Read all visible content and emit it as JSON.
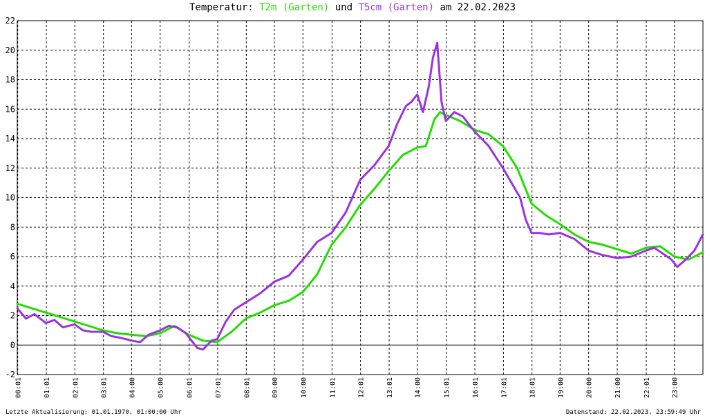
{
  "title": {
    "prefix": "Temperatur: ",
    "series1": "T2m (Garten)",
    "mid": " und ",
    "series2": "T5cm (Garten)",
    "suffix": " am 22.02.2023"
  },
  "footer": {
    "left": "Letzte Aktualisierung: 01.01.1970, 01:00:00 Uhr",
    "right": "Datenstand: 22.02.2023, 23:59:49 Uhr"
  },
  "colors": {
    "t2m": "#22dd00",
    "t5cm": "#9933dd",
    "grid": "#000000",
    "zero_line": "#000000"
  },
  "chart_data": {
    "type": "line",
    "title": "Temperatur: T2m (Garten) und T5cm (Garten) am 22.02.2023",
    "xlim": [
      0,
      24
    ],
    "ylim": [
      -2,
      22
    ],
    "yticks": [
      -2,
      0,
      2,
      4,
      6,
      8,
      10,
      12,
      14,
      16,
      18,
      20,
      22
    ],
    "xticks": [
      {
        "h": 0.0167,
        "label": "00:01"
      },
      {
        "h": 1.0167,
        "label": "01:01"
      },
      {
        "h": 2.0167,
        "label": "02:01"
      },
      {
        "h": 3.0167,
        "label": "03:01"
      },
      {
        "h": 4.0,
        "label": "04:00"
      },
      {
        "h": 5.0,
        "label": "05:00"
      },
      {
        "h": 6.0167,
        "label": "06:01"
      },
      {
        "h": 7.0167,
        "label": "07:01"
      },
      {
        "h": 8.0167,
        "label": "08:01"
      },
      {
        "h": 9.0,
        "label": "09:00"
      },
      {
        "h": 10.0,
        "label": "10:00"
      },
      {
        "h": 11.0167,
        "label": "11:01"
      },
      {
        "h": 12.0167,
        "label": "12:01"
      },
      {
        "h": 13.0167,
        "label": "13:01"
      },
      {
        "h": 14.0,
        "label": "14:00"
      },
      {
        "h": 15.0167,
        "label": "15:01"
      },
      {
        "h": 16.0167,
        "label": "16:01"
      },
      {
        "h": 17.0167,
        "label": "17:01"
      },
      {
        "h": 18.0167,
        "label": "18:01"
      },
      {
        "h": 19.0,
        "label": "19:00"
      },
      {
        "h": 20.0,
        "label": "20:00"
      },
      {
        "h": 21.0,
        "label": "21:00"
      },
      {
        "h": 22.0167,
        "label": "22:01"
      },
      {
        "h": 23.0,
        "label": "23:00"
      }
    ],
    "grid": true,
    "series": [
      {
        "name": "T2m (Garten)",
        "x": [
          0,
          0.5,
          1,
          1.5,
          2,
          2.5,
          3,
          3.5,
          4,
          4.5,
          5,
          5.5,
          6,
          6.5,
          7,
          7.5,
          8,
          8.5,
          9,
          9.5,
          10,
          10.5,
          11,
          11.5,
          12,
          12.5,
          13,
          13.5,
          14,
          14.3,
          14.6,
          14.8,
          15,
          15.5,
          16,
          16.5,
          17,
          17.5,
          18,
          18.5,
          19,
          19.5,
          20,
          20.5,
          21,
          21.5,
          22,
          22.5,
          23,
          23.5,
          24
        ],
        "y": [
          2.8,
          2.5,
          2.2,
          1.9,
          1.6,
          1.3,
          1.0,
          0.8,
          0.7,
          0.6,
          0.8,
          1.3,
          0.7,
          0.3,
          0.2,
          0.9,
          1.8,
          2.2,
          2.7,
          3.0,
          3.6,
          4.8,
          6.8,
          8.0,
          9.5,
          10.6,
          11.8,
          12.9,
          13.4,
          13.5,
          15.3,
          15.8,
          15.6,
          15.2,
          14.6,
          14.3,
          13.5,
          12.0,
          9.6,
          8.8,
          8.2,
          7.5,
          7.0,
          6.8,
          6.5,
          6.2,
          6.6,
          6.7,
          6.0,
          5.8,
          6.3
        ]
      },
      {
        "name": "T5cm (Garten)",
        "x": [
          0,
          0.3,
          0.6,
          1,
          1.3,
          1.6,
          2,
          2.3,
          2.6,
          3,
          3.3,
          3.6,
          4,
          4.3,
          4.6,
          5,
          5.3,
          5.6,
          5.9,
          6.1,
          6.3,
          6.5,
          6.8,
          7,
          7.3,
          7.6,
          8,
          8.5,
          9,
          9.5,
          10,
          10.5,
          11,
          11.5,
          12,
          12.5,
          13,
          13.3,
          13.6,
          13.8,
          14,
          14.2,
          14.4,
          14.55,
          14.7,
          14.85,
          15,
          15.3,
          15.6,
          16,
          16.5,
          17,
          17.3,
          17.6,
          17.8,
          18,
          18.3,
          18.6,
          19,
          19.5,
          20,
          20.5,
          21,
          21.5,
          22,
          22.3,
          22.6,
          22.9,
          23.1,
          23.4,
          23.7,
          24
        ],
        "y": [
          2.5,
          1.8,
          2.1,
          1.5,
          1.7,
          1.2,
          1.4,
          1.0,
          0.9,
          0.9,
          0.6,
          0.5,
          0.3,
          0.2,
          0.7,
          1.0,
          1.3,
          1.2,
          0.8,
          0.3,
          -0.2,
          -0.3,
          0.3,
          0.4,
          1.6,
          2.4,
          2.9,
          3.5,
          4.3,
          4.7,
          5.8,
          7.0,
          7.6,
          9.0,
          11.2,
          12.2,
          13.5,
          15.0,
          16.2,
          16.5,
          17.0,
          15.8,
          17.5,
          19.5,
          20.5,
          16.5,
          15.2,
          15.8,
          15.5,
          14.5,
          13.5,
          12.0,
          11.0,
          10.0,
          8.5,
          7.6,
          7.6,
          7.5,
          7.6,
          7.2,
          6.4,
          6.1,
          5.9,
          6.0,
          6.4,
          6.6,
          6.2,
          5.8,
          5.3,
          5.8,
          6.4,
          7.5
        ]
      }
    ]
  }
}
